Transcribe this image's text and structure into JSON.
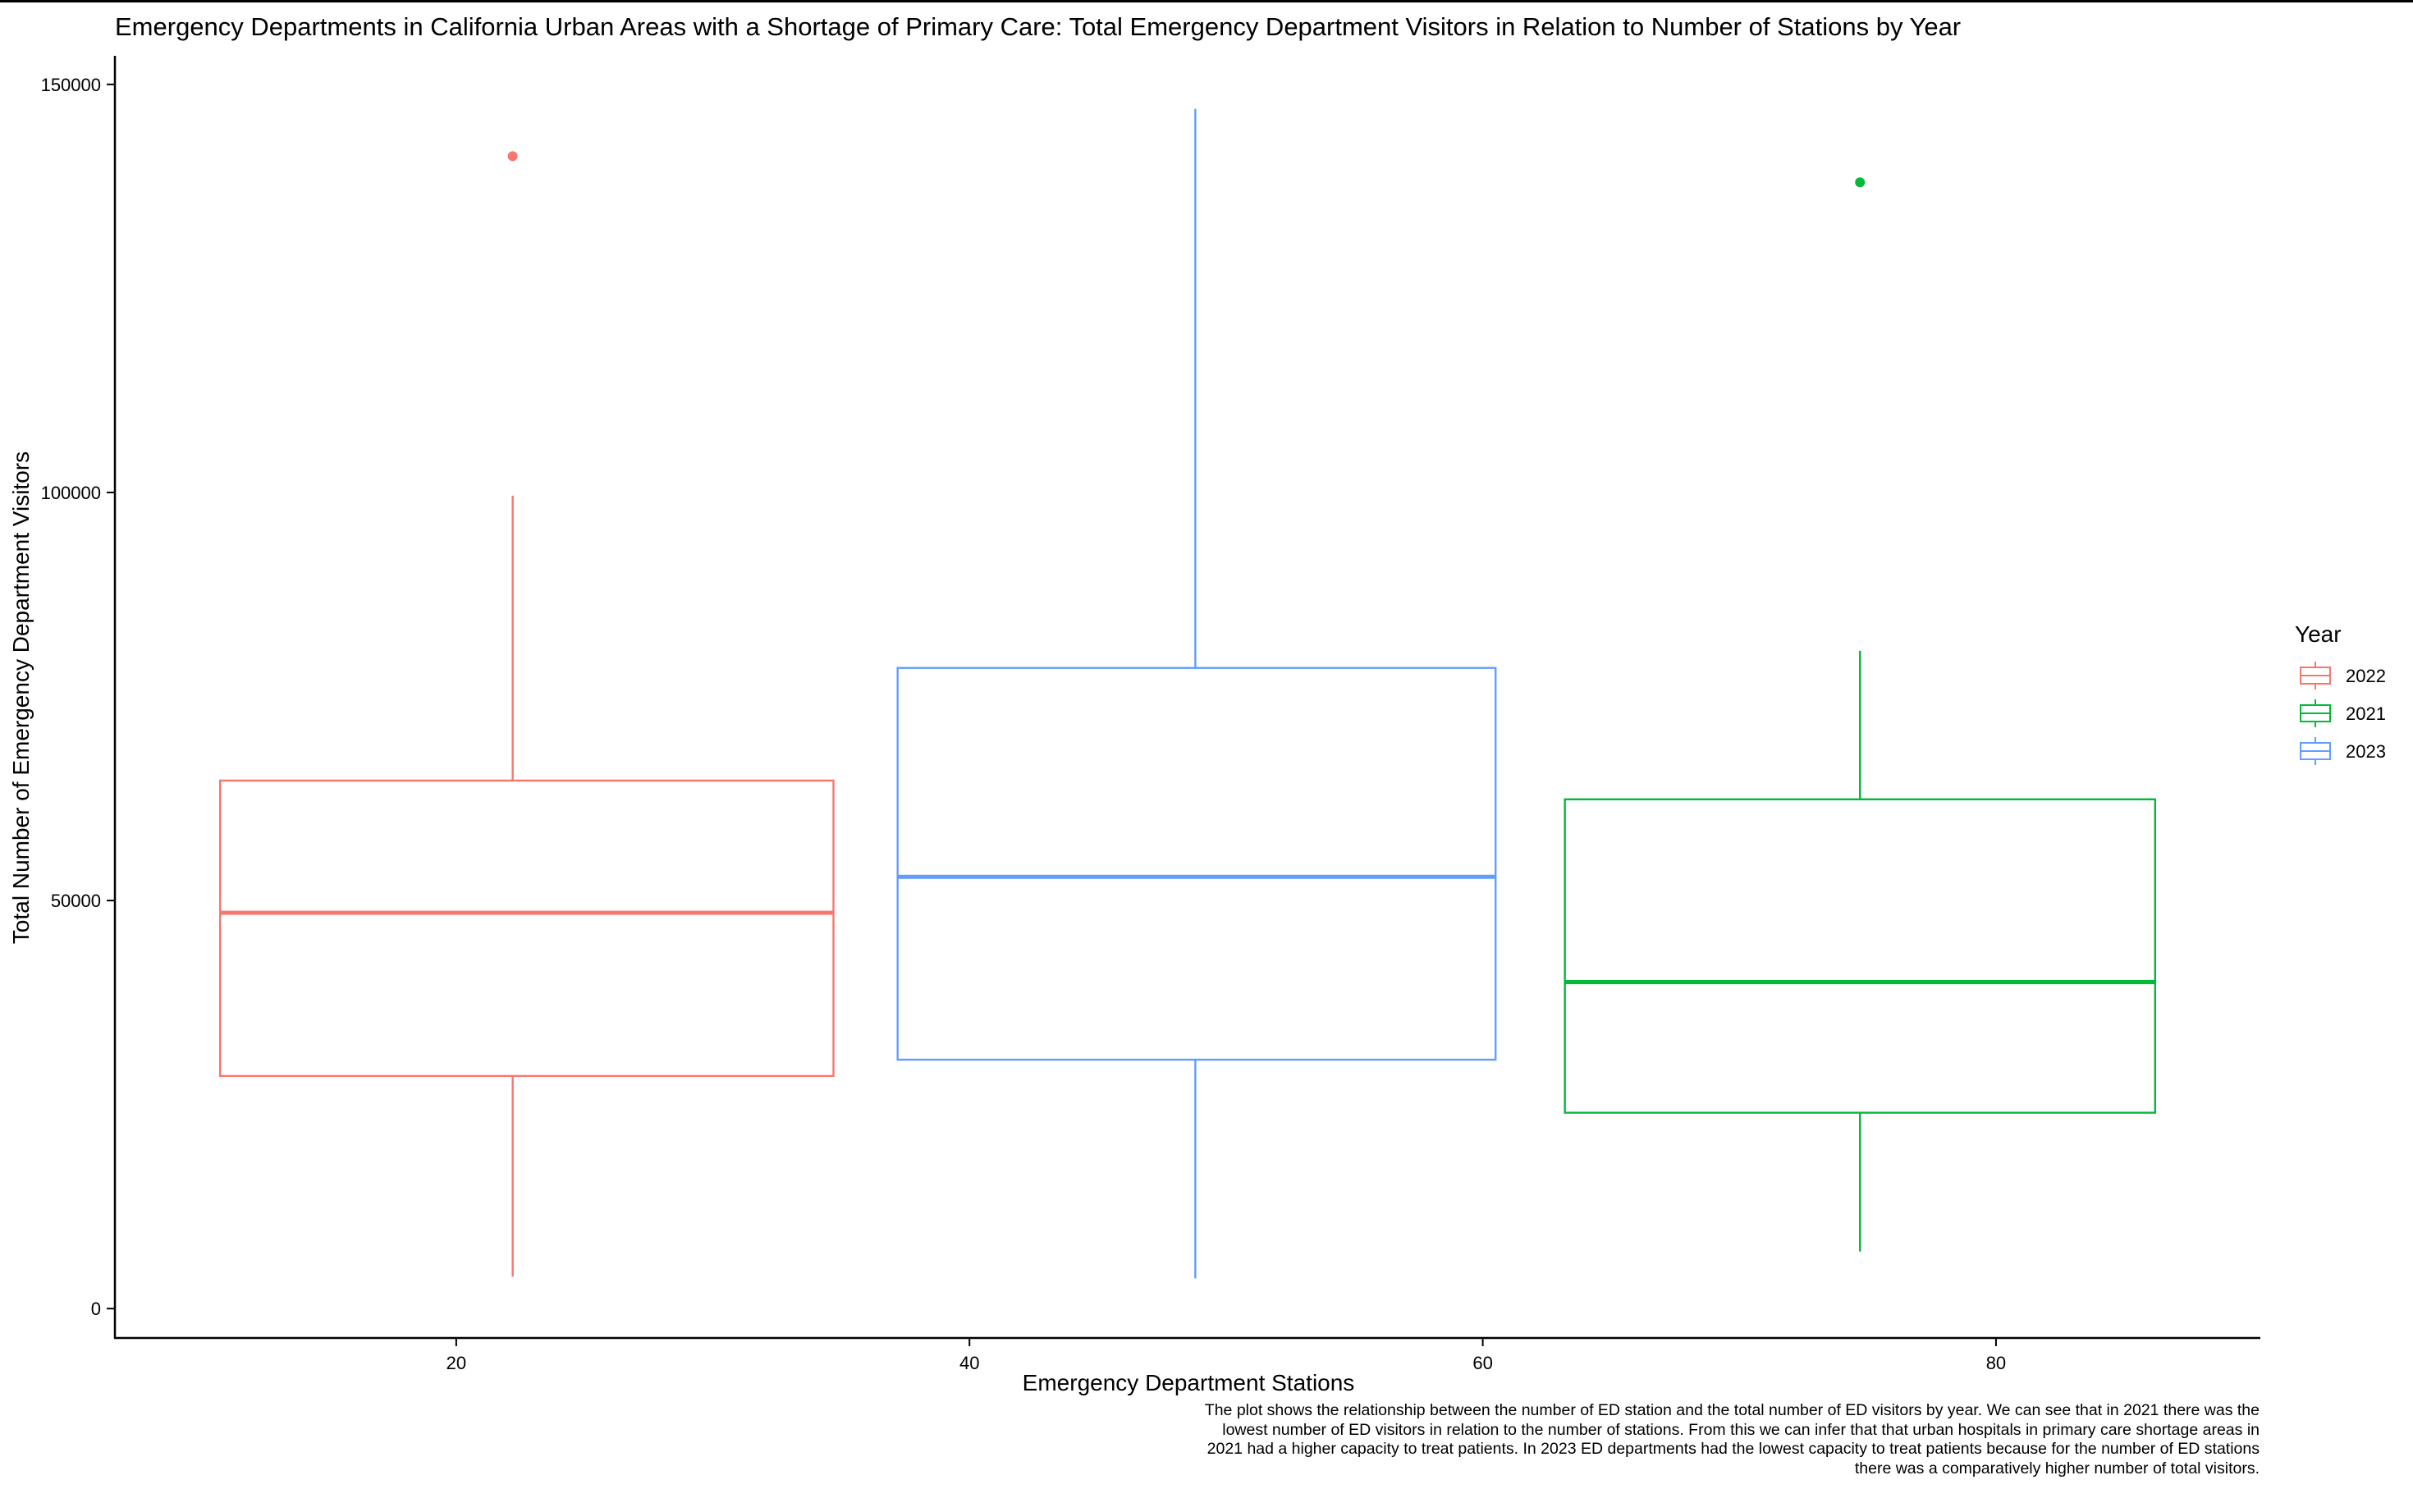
{
  "chart_data": {
    "type": "box",
    "title": "Emergency Departments in California Urban Areas with a Shortage of Primary Care: Total Emergency Department Visitors in Relation to Number of Stations by Year",
    "xlabel": "Emergency Department Stations",
    "ylabel": "Total Number of Emergency Department Visitors",
    "xlim": [
      6.7,
      90.3
    ],
    "ylim": [
      -3600,
      153500
    ],
    "x_ticks": [
      "20",
      "40",
      "60",
      "80"
    ],
    "y_ticks": [
      "0",
      "50000",
      "100000",
      "150000"
    ],
    "legend": {
      "title": "Year",
      "position": "right"
    },
    "grid": false,
    "series": [
      {
        "name": "2022",
        "color": "#F8766D",
        "x_range": [
          10.8,
          34.7
        ],
        "median_x": 22.2,
        "whisker_low": 3900,
        "q1": 28500,
        "median": 48500,
        "q3": 64700,
        "whisker_high": 99600,
        "outliers": [
          141200
        ]
      },
      {
        "name": "2021",
        "color": "#00BA38",
        "x_range": [
          63.2,
          86.2
        ],
        "median_x": 74.7,
        "whisker_low": 7000,
        "q1": 24000,
        "median": 40000,
        "q3": 62400,
        "whisker_high": 80600,
        "outliers": [
          138000
        ]
      },
      {
        "name": "2023",
        "color": "#619CFF",
        "x_range": [
          37.2,
          60.5
        ],
        "median_x": 48.8,
        "whisker_low": 3700,
        "q1": 30500,
        "median": 52900,
        "q3": 78500,
        "whisker_high": 147000,
        "outliers": []
      }
    ]
  },
  "caption": "The plot shows the relationship between the number of ED station and the total number of ED visitors by year. We can see that in 2021 there was the lowest number of ED visitors in relation to the number of stations. From this we can infer that that urban hospitals in primary care shortage areas in 2021 had a higher capacity to treat patients. In 2023 ED departments had the lowest capacity to treat patients because for the number of ED stations there was a comparatively higher number of total visitors."
}
